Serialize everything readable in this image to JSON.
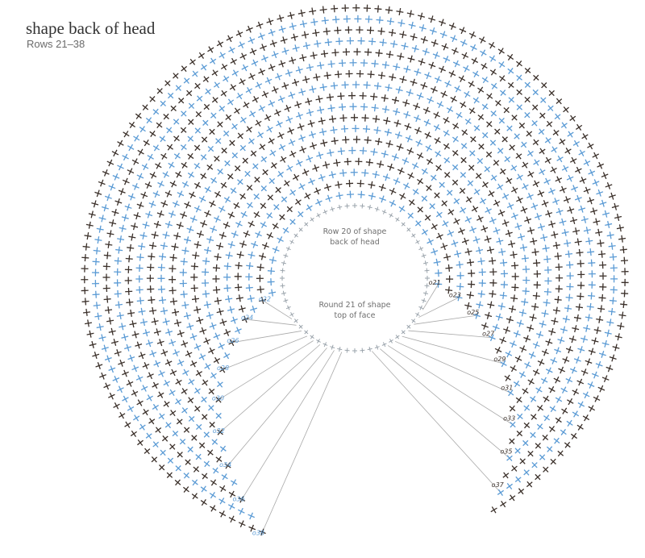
{
  "header": {
    "title": "shape back of head",
    "subtitle": "Rows 21–38"
  },
  "center": {
    "top_lines": [
      "Row 20 of shape",
      "back of head"
    ],
    "bottom_lines": [
      "Round 21 of shape",
      "top of face"
    ]
  },
  "row_labels": {
    "left": [
      "o22",
      "o24",
      "o26",
      "o28",
      "o30",
      "o32",
      "o34",
      "o36",
      "o38"
    ],
    "right": [
      "o21",
      "o23",
      "o25",
      "o27",
      "o29",
      "o31",
      "o33",
      "o35",
      "o37"
    ]
  }
}
